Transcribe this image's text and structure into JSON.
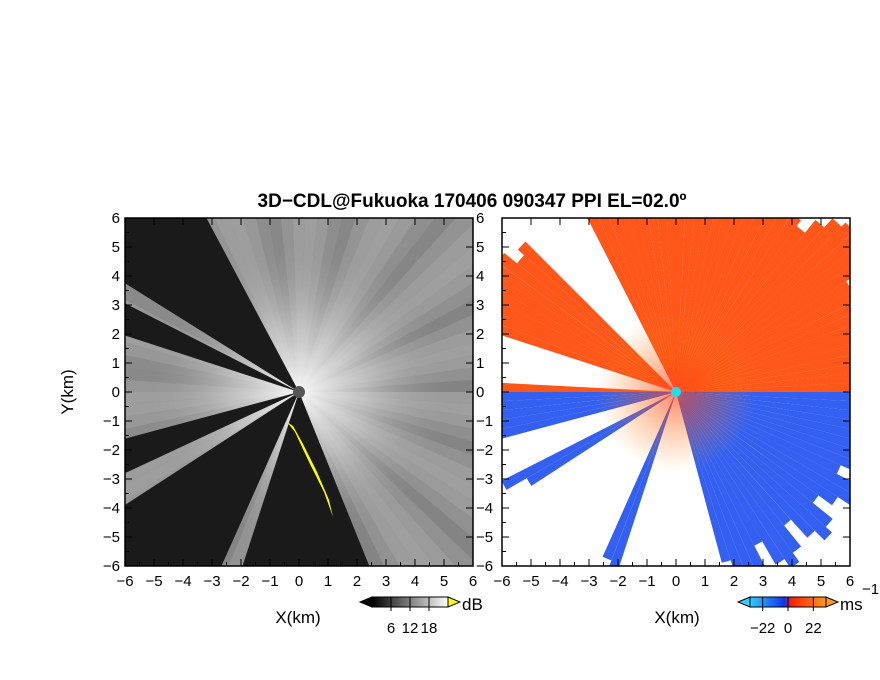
{
  "chart_data": {
    "type": "heatmap",
    "title": "3D−CDL@Fukuoka 170406 090347 PPI EL=02.0º",
    "panels": [
      {
        "name": "reflectivity",
        "xlabel": "X(km)",
        "ylabel": "Y(km)",
        "xlim": [
          -6,
          6
        ],
        "ylim": [
          -6,
          6
        ],
        "xticks": [
          "−6",
          "−5",
          "−4",
          "−3",
          "−2",
          "−1",
          "0",
          "1",
          "2",
          "3",
          "4",
          "5",
          "6"
        ],
        "yticks": [
          "6",
          "5",
          "4",
          "3",
          "2",
          "1",
          "0",
          "−1",
          "−2",
          "−3",
          "−4",
          "−5",
          "−6"
        ],
        "colorbar": {
          "unit": "dB",
          "tick_labels": [
            "6",
            "12",
            "18"
          ],
          "range": [
            0,
            24
          ],
          "colors": [
            "#000000",
            "#ffffff"
          ],
          "over_color": "#ffff00"
        }
      },
      {
        "name": "doppler-velocity",
        "xlabel": "X(km)",
        "ylabel": "",
        "xlim": [
          -6,
          6
        ],
        "ylim": [
          -6,
          6
        ],
        "xticks": [
          "−6",
          "−5",
          "−4",
          "−3",
          "−2",
          "−1",
          "0",
          "1",
          "2",
          "3",
          "4",
          "5",
          "6"
        ],
        "yticks": [
          "6",
          "5",
          "4",
          "3",
          "2",
          "1",
          "0",
          "−1",
          "−2",
          "−3",
          "−4",
          "−5",
          "−6"
        ],
        "colorbar": {
          "unit": "ms",
          "unit_exponent": "−1",
          "tick_labels": [
            "−22",
            "0",
            "22"
          ],
          "range": [
            -33,
            33
          ],
          "colors": [
            "#33ccff",
            "#1133ee",
            "#ff2200",
            "#ff9922"
          ]
        }
      }
    ],
    "sectors": {
      "reflectivity_dark_sectors_deg": [
        [
          118,
          148
        ],
        [
          153,
          162
        ],
        [
          195,
          205
        ],
        [
          213,
          246
        ],
        [
          252,
          292
        ]
      ],
      "velocity_empty_sectors_deg": [
        [
          118,
          136
        ],
        [
          163,
          176
        ],
        [
          196,
          206
        ],
        [
          214,
          246
        ],
        [
          252,
          286
        ]
      ],
      "velocity_receding_color": "#ff4400",
      "velocity_approaching_color": "#1144ee",
      "max_range_km": 6
    }
  }
}
